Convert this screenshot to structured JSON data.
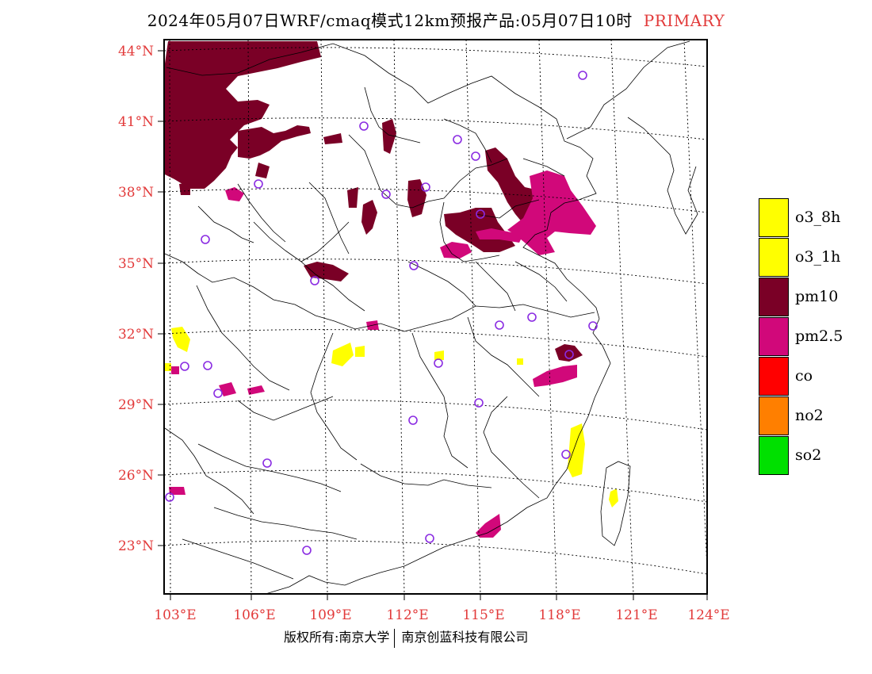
{
  "title": {
    "main": "2024年05月07日WRF/cmaq模式12km预报产品:05月07日10时",
    "tag": "PRIMARY"
  },
  "lat_labels": [
    "44°N",
    "41°N",
    "38°N",
    "35°N",
    "32°N",
    "29°N",
    "26°N",
    "23°N"
  ],
  "lon_labels": [
    "103°E",
    "106°E",
    "109°E",
    "112°E",
    "115°E",
    "118°E",
    "121°E",
    "124°E"
  ],
  "legend": [
    {
      "label": "o3_8h",
      "color": "#ffff00"
    },
    {
      "label": "o3_1h",
      "color": "#ffff00"
    },
    {
      "label": "pm10",
      "color": "#7a0026"
    },
    {
      "label": "pm2.5",
      "color": "#d1087a"
    },
    {
      "label": "co",
      "color": "#ff0000"
    },
    {
      "label": "no2",
      "color": "#ff7f00"
    },
    {
      "label": "so2",
      "color": "#00e000"
    }
  ],
  "footer": {
    "left": "版权所有:南京大学",
    "right": "南京创蓝科技有限公司"
  },
  "colors": {
    "axis_label": "#e23a3a",
    "station": "#8a2be2"
  }
}
